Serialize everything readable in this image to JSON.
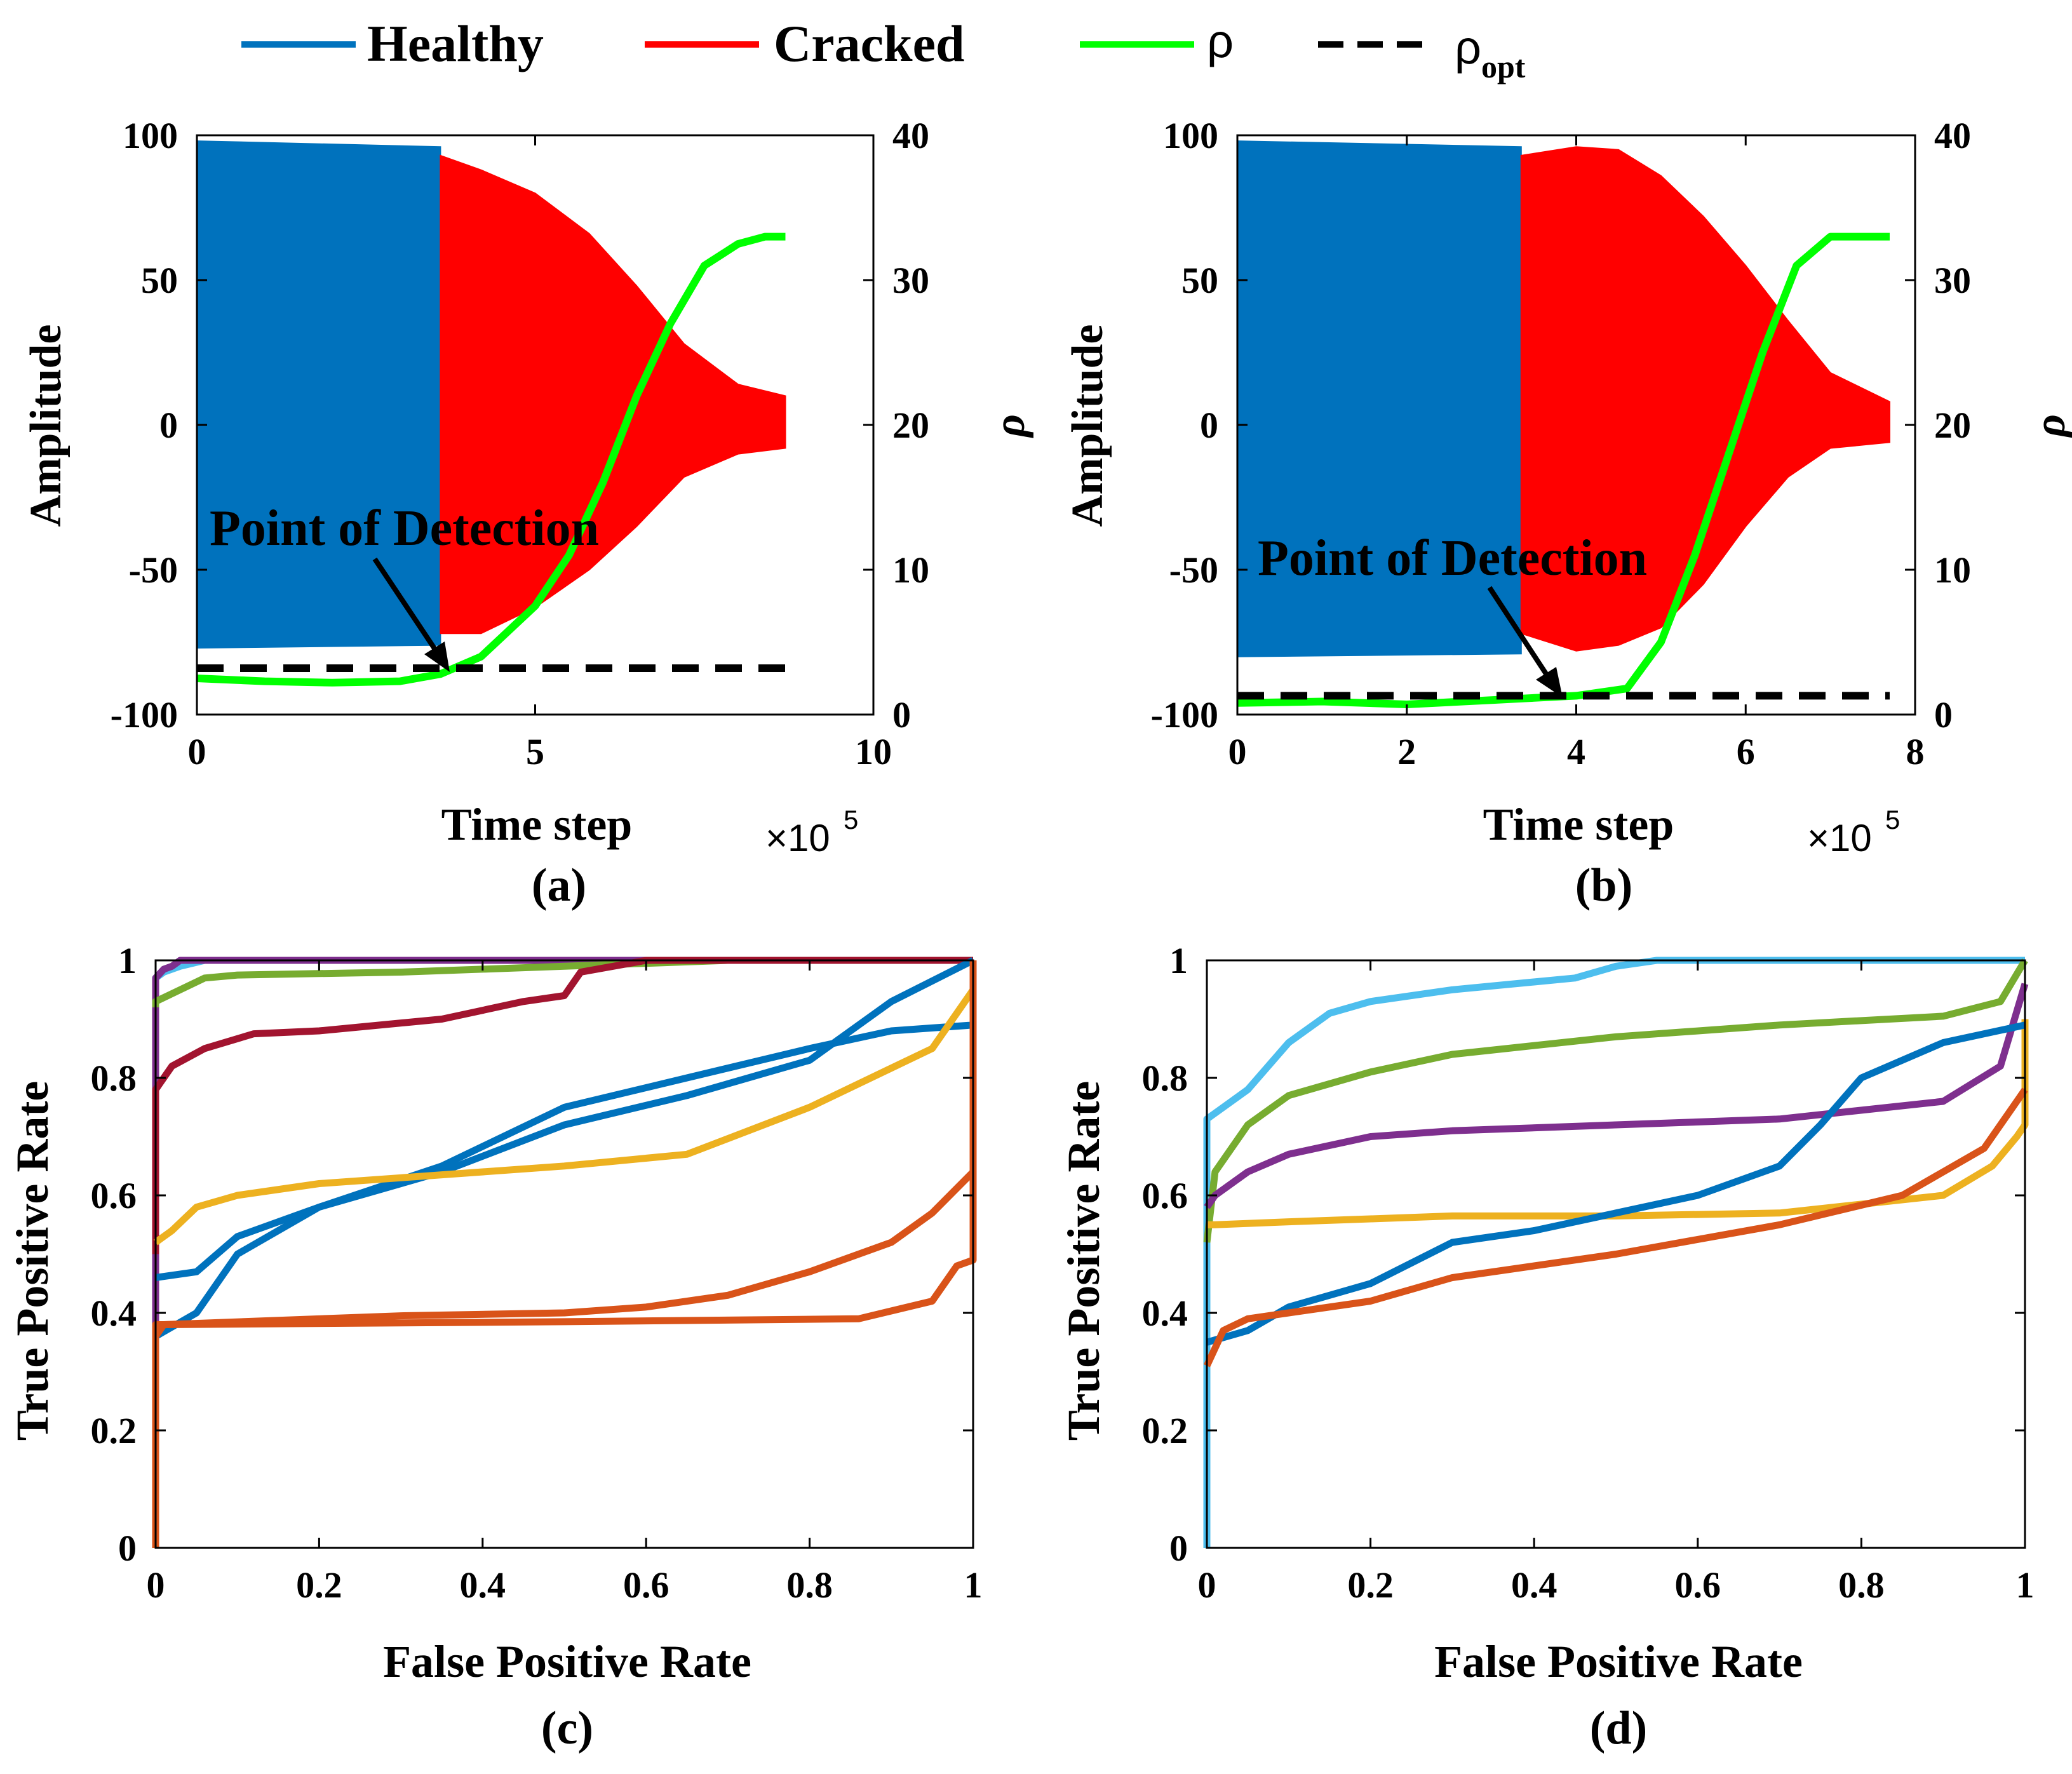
{
  "legend": {
    "entries": [
      {
        "label": "Healthy",
        "color": "#0072BD",
        "style": "solid"
      },
      {
        "label": "Cracked",
        "color": "#FF0000",
        "style": "solid"
      },
      {
        "label": "ρ",
        "color": "#00FF00",
        "style": "solid"
      },
      {
        "label": "ρ",
        "sub": "opt",
        "color": "#000000",
        "style": "dashed"
      }
    ]
  },
  "chart_data": [
    {
      "panel": "(a)",
      "type": "line",
      "xlabel": "Time step",
      "x_multiplier": "×10",
      "x_multiplier_exp": "5",
      "ylabel": "Amplitude",
      "ylabel_right": "ρ",
      "xlim": [
        0,
        10
      ],
      "ylim": [
        -100,
        100
      ],
      "ylim_right": [
        0,
        40
      ],
      "xticks": [
        "0",
        "5",
        "10"
      ],
      "yticks": [
        "-100",
        "-50",
        "0",
        "50",
        "100"
      ],
      "yticks_right": [
        "0",
        "10",
        "20",
        "30",
        "40"
      ],
      "annotation": "Point of Detection",
      "annotation_target": [
        3.7,
        3.0
      ],
      "series": [
        {
          "name": "Healthy",
          "x": [
            0,
            3.6
          ],
          "upper": [
            98,
            96
          ],
          "lower": [
            -77,
            -76
          ]
        },
        {
          "name": "Cracked",
          "x": [
            3.6,
            4.2,
            5.0,
            5.8,
            6.5,
            7.2,
            8.0,
            8.7
          ],
          "upper": [
            93,
            88,
            80,
            66,
            48,
            28,
            14,
            10
          ],
          "lower": [
            -72,
            -72,
            -63,
            -50,
            -35,
            -18,
            -10,
            -8
          ]
        },
        {
          "name": "ρ",
          "x": [
            0,
            1,
            2,
            3,
            3.6,
            4.2,
            5.0,
            5.5,
            6.0,
            6.5,
            7.0,
            7.5,
            8.0,
            8.4,
            8.7
          ],
          "values": [
            2.5,
            2.3,
            2.2,
            2.3,
            2.8,
            4.0,
            7.5,
            11,
            16,
            22,
            27,
            31,
            32.5,
            33,
            33
          ]
        },
        {
          "name": "ρ_opt",
          "x": [
            0,
            8.7
          ],
          "values": [
            3.2,
            3.2
          ]
        }
      ]
    },
    {
      "panel": "(b)",
      "type": "line",
      "xlabel": "Time step",
      "x_multiplier": "×10",
      "x_multiplier_exp": "5",
      "ylabel": "Amplitude",
      "ylabel_right": "ρ",
      "xlim": [
        0,
        8
      ],
      "ylim": [
        -100,
        100
      ],
      "ylim_right": [
        0,
        40
      ],
      "xticks": [
        "0",
        "2",
        "4",
        "6",
        "8"
      ],
      "yticks": [
        "-100",
        "-50",
        "0",
        "50",
        "100"
      ],
      "yticks_right": [
        "0",
        "10",
        "20",
        "30",
        "40"
      ],
      "annotation": "Point of Detection",
      "annotation_target": [
        3.8,
        1.4
      ],
      "series": [
        {
          "name": "Healthy",
          "x": [
            0,
            3.35
          ],
          "upper": [
            98,
            96
          ],
          "lower": [
            -80,
            -79
          ]
        },
        {
          "name": "Cracked",
          "x": [
            3.35,
            4.0,
            4.5,
            5.0,
            5.5,
            6.0,
            6.5,
            7.0,
            7.7
          ],
          "upper": [
            93,
            96,
            95,
            86,
            72,
            55,
            36,
            18,
            8
          ],
          "lower": [
            -72,
            -78,
            -76,
            -70,
            -55,
            -35,
            -18,
            -8,
            -6
          ]
        },
        {
          "name": "ρ",
          "x": [
            0,
            1,
            2,
            3,
            4.0,
            4.6,
            5.0,
            5.4,
            5.8,
            6.2,
            6.6,
            7.0,
            7.4,
            7.7
          ],
          "values": [
            0.8,
            0.9,
            0.7,
            1.0,
            1.3,
            1.8,
            5,
            11,
            18,
            25,
            31,
            33,
            33,
            33
          ]
        },
        {
          "name": "ρ_opt",
          "x": [
            0,
            7.7
          ],
          "values": [
            1.3,
            1.3
          ]
        }
      ]
    },
    {
      "panel": "(c)",
      "type": "line",
      "xlabel": "False Positive Rate",
      "ylabel": "True Positive Rate",
      "xlim": [
        0,
        1
      ],
      "ylim": [
        0,
        1
      ],
      "xticks": [
        "0",
        "0.2",
        "0.4",
        "0.6",
        "0.8",
        "1"
      ],
      "yticks": [
        "0",
        "0.2",
        "0.4",
        "0.6",
        "0.8",
        "1"
      ],
      "series": [
        {
          "name": "curve-1",
          "color": "#4DBEEE",
          "x": [
            0,
            0,
            0.01,
            0.03,
            0.06,
            0.2,
            0.5,
            1
          ],
          "values": [
            0,
            0.97,
            0.98,
            0.99,
            1,
            1,
            1,
            1
          ]
        },
        {
          "name": "curve-2",
          "color": "#7E2F8E",
          "x": [
            0,
            0,
            0.01,
            0.02,
            0.03,
            0.05,
            0.5,
            1
          ],
          "values": [
            0,
            0.97,
            0.985,
            0.99,
            1,
            1,
            1,
            1
          ]
        },
        {
          "name": "curve-3",
          "color": "#77AC30",
          "x": [
            0,
            0,
            0.03,
            0.06,
            0.1,
            0.3,
            0.5,
            0.7,
            1
          ],
          "values": [
            0.92,
            0.93,
            0.95,
            0.97,
            0.975,
            0.98,
            0.99,
            1,
            1
          ]
        },
        {
          "name": "curve-4",
          "color": "#A2142F",
          "x": [
            0,
            0,
            0.02,
            0.06,
            0.12,
            0.2,
            0.35,
            0.45,
            0.5,
            0.52,
            0.6,
            1
          ],
          "values": [
            0.5,
            0.78,
            0.82,
            0.85,
            0.875,
            0.88,
            0.9,
            0.93,
            0.94,
            0.98,
            1,
            1
          ]
        },
        {
          "name": "curve-5",
          "color": "#0072BD",
          "x": [
            0,
            0.05,
            0.1,
            0.2,
            0.35,
            0.5,
            0.65,
            0.8,
            0.9,
            1
          ],
          "values": [
            0.46,
            0.47,
            0.53,
            0.58,
            0.65,
            0.75,
            0.8,
            0.85,
            0.88,
            0.89
          ]
        },
        {
          "name": "curve-6",
          "color": "#0072BD",
          "x": [
            0,
            0.05,
            0.1,
            0.2,
            0.35,
            0.5,
            0.65,
            0.8,
            0.9,
            1
          ],
          "values": [
            0.36,
            0.4,
            0.5,
            0.58,
            0.64,
            0.72,
            0.77,
            0.83,
            0.93,
            1
          ]
        },
        {
          "name": "curve-7",
          "color": "#EDB120",
          "x": [
            0,
            0.02,
            0.05,
            0.1,
            0.2,
            0.3,
            0.5,
            0.65,
            0.8,
            0.95,
            1
          ],
          "values": [
            0.52,
            0.54,
            0.58,
            0.6,
            0.62,
            0.63,
            0.65,
            0.67,
            0.75,
            0.85,
            0.95
          ]
        },
        {
          "name": "curve-8",
          "color": "#D95319",
          "x": [
            0,
            0.01,
            0.3,
            0.5,
            0.6,
            0.7,
            0.8,
            0.9,
            0.95,
            1
          ],
          "values": [
            0.36,
            0.38,
            0.395,
            0.4,
            0.41,
            0.43,
            0.47,
            0.52,
            0.57,
            0.64
          ]
        },
        {
          "name": "curve-9",
          "color": "#D95319",
          "x": [
            0,
            0,
            0.01,
            0.5,
            0.86,
            0.95,
            0.98,
            1,
            1
          ],
          "values": [
            0,
            0.38,
            0.38,
            0.385,
            0.39,
            0.42,
            0.48,
            0.49,
            1
          ]
        }
      ]
    },
    {
      "panel": "(d)",
      "type": "line",
      "xlabel": "False Positive Rate",
      "ylabel": "True Positive Rate",
      "xlim": [
        0,
        1
      ],
      "ylim": [
        0,
        1
      ],
      "xticks": [
        "0",
        "0.2",
        "0.4",
        "0.6",
        "0.8",
        "1"
      ],
      "yticks": [
        "0",
        "0.2",
        "0.4",
        "0.6",
        "0.8",
        "1"
      ],
      "series": [
        {
          "name": "curve-1",
          "color": "#4DBEEE",
          "x": [
            0,
            0,
            0.02,
            0.05,
            0.1,
            0.15,
            0.2,
            0.3,
            0.45,
            0.5,
            0.55,
            1
          ],
          "values": [
            0,
            0.73,
            0.75,
            0.78,
            0.86,
            0.91,
            0.93,
            0.95,
            0.97,
            0.99,
            1,
            1
          ]
        },
        {
          "name": "curve-2",
          "color": "#77AC30",
          "x": [
            0,
            0.01,
            0.05,
            0.1,
            0.2,
            0.3,
            0.5,
            0.7,
            0.9,
            0.97,
            1
          ],
          "values": [
            0.52,
            0.64,
            0.72,
            0.77,
            0.81,
            0.84,
            0.87,
            0.89,
            0.905,
            0.93,
            1
          ]
        },
        {
          "name": "curve-3",
          "color": "#7E2F8E",
          "x": [
            0,
            0.01,
            0.05,
            0.1,
            0.2,
            0.3,
            0.5,
            0.7,
            0.9,
            0.97,
            1
          ],
          "values": [
            0.58,
            0.6,
            0.64,
            0.67,
            0.7,
            0.71,
            0.72,
            0.73,
            0.76,
            0.82,
            0.96
          ]
        },
        {
          "name": "curve-4",
          "color": "#EDB120",
          "x": [
            0,
            0.01,
            0.1,
            0.2,
            0.3,
            0.5,
            0.7,
            0.9,
            0.96,
            0.99,
            1,
            1
          ],
          "values": [
            0.55,
            0.55,
            0.555,
            0.56,
            0.565,
            0.565,
            0.57,
            0.6,
            0.65,
            0.7,
            0.72,
            0.9
          ]
        },
        {
          "name": "curve-5",
          "color": "#0072BD",
          "x": [
            0,
            0.05,
            0.1,
            0.2,
            0.3,
            0.4,
            0.5,
            0.6,
            0.7,
            0.75,
            0.8,
            0.9,
            1
          ],
          "values": [
            0.35,
            0.37,
            0.41,
            0.45,
            0.52,
            0.54,
            0.57,
            0.6,
            0.65,
            0.72,
            0.8,
            0.86,
            0.89
          ]
        },
        {
          "name": "curve-6",
          "color": "#D95319",
          "x": [
            0,
            0.02,
            0.05,
            0.1,
            0.2,
            0.3,
            0.5,
            0.7,
            0.85,
            0.95,
            1
          ],
          "values": [
            0.31,
            0.37,
            0.39,
            0.4,
            0.42,
            0.46,
            0.5,
            0.55,
            0.6,
            0.68,
            0.78
          ]
        }
      ]
    }
  ]
}
